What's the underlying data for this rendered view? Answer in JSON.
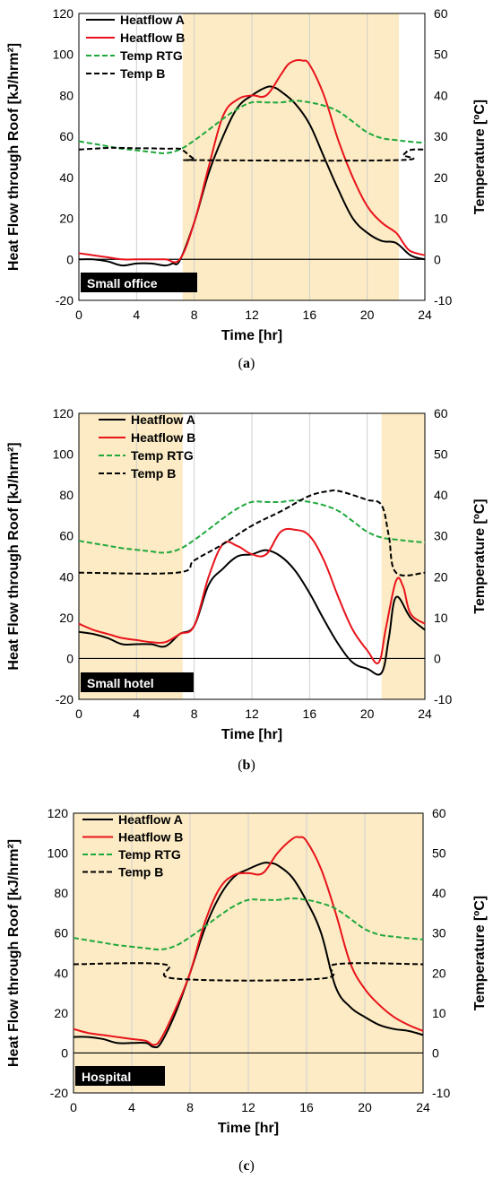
{
  "chart_data": [
    {
      "type": "line",
      "caption": "a",
      "label": "Small office",
      "xlabel": "Time [hr]",
      "ylabel": "Heat Flow through Roof [kJ/hrm²]",
      "y2label": "Temperature [ºC]",
      "xlim": [
        0,
        24
      ],
      "ylim": [
        -20,
        120
      ],
      "y2lim": [
        -10,
        60
      ],
      "xticks": [
        "0",
        "4",
        "8",
        "12",
        "16",
        "20",
        "24"
      ],
      "yticks": [
        "-20",
        "0",
        "20",
        "40",
        "60",
        "80",
        "100",
        "120"
      ],
      "y2ticks": [
        "-10",
        "0",
        "10",
        "20",
        "30",
        "40",
        "50",
        "60"
      ],
      "shaded_hours": [
        [
          7.2,
          22.2
        ]
      ],
      "series": [
        {
          "name": "Heatflow A",
          "axis": "left",
          "color": "#000000",
          "dash": "solid",
          "x": [
            0,
            1,
            2,
            3,
            4,
            5,
            6,
            6.5,
            7,
            8,
            9,
            10,
            11,
            12,
            13,
            13.5,
            14,
            15,
            16,
            17,
            18,
            19,
            20,
            21,
            22,
            23,
            24
          ],
          "y": [
            0,
            0,
            -1,
            -3,
            -2,
            -2,
            -3,
            -2,
            -0.5,
            18,
            42,
            60,
            74,
            80,
            84,
            84,
            82,
            76,
            66,
            50,
            34,
            20,
            13,
            9,
            8,
            2,
            0
          ]
        },
        {
          "name": "Heatflow B",
          "axis": "left",
          "color": "#e8131b",
          "dash": "solid",
          "x": [
            0,
            1,
            2,
            3,
            4,
            5,
            6,
            7,
            8,
            9,
            10,
            11,
            12,
            13,
            14,
            14.5,
            15,
            15.5,
            16,
            17,
            18,
            19,
            20,
            21,
            22,
            22.5,
            23,
            24
          ],
          "y": [
            3,
            2,
            1,
            0,
            0,
            0,
            0,
            0,
            18,
            45,
            70,
            78,
            80,
            80,
            90,
            95,
            97,
            97,
            95,
            80,
            58,
            40,
            26,
            18,
            13,
            8,
            4,
            2
          ]
        },
        {
          "name": "Temp RTG",
          "axis": "right",
          "color": "#1fa83c",
          "dash": "dashed",
          "x": [
            0,
            1,
            2,
            3,
            4,
            5,
            6,
            7,
            8,
            9,
            10,
            11,
            12,
            13,
            14,
            15,
            16,
            17,
            18,
            19,
            20,
            21,
            22,
            23,
            24
          ],
          "y": [
            28.8,
            28.2,
            27.6,
            27,
            26.6,
            26.2,
            25.9,
            26.8,
            29,
            31.6,
            34.3,
            36.7,
            38.3,
            38.3,
            38.3,
            38.7,
            38.3,
            37.5,
            36.1,
            33.6,
            31,
            29.6,
            29.1,
            28.7,
            28.4
          ]
        },
        {
          "name": "Temp B",
          "axis": "right",
          "color": "#000000",
          "dash": "dashed",
          "x": [
            0,
            1,
            2,
            3,
            4,
            5,
            6,
            7,
            7.3,
            8,
            8.5,
            22,
            22.5,
            23,
            24
          ],
          "y": [
            26.8,
            27,
            27.2,
            27.2,
            27.1,
            27.1,
            27,
            27,
            26.4,
            24.5,
            24.2,
            24.2,
            25.5,
            26.7,
            26.8
          ]
        }
      ]
    },
    {
      "type": "line",
      "caption": "b",
      "label": "Small hotel",
      "xlabel": "Time [hr]",
      "ylabel": "Heat Flow through Roof [kJ/hrm²]",
      "y2label": "Temperature [ºC]",
      "xlim": [
        0,
        24
      ],
      "ylim": [
        -20,
        120
      ],
      "y2lim": [
        -10,
        60
      ],
      "xticks": [
        "0",
        "4",
        "8",
        "12",
        "16",
        "20",
        "24"
      ],
      "yticks": [
        "-20",
        "0",
        "20",
        "40",
        "60",
        "80",
        "100",
        "120"
      ],
      "y2ticks": [
        "-10",
        "0",
        "10",
        "20",
        "30",
        "40",
        "50",
        "60"
      ],
      "shaded_hours": [
        [
          0,
          7.2
        ],
        [
          21,
          24
        ]
      ],
      "series": [
        {
          "name": "Heatflow A",
          "axis": "left",
          "color": "#000000",
          "dash": "solid",
          "x": [
            0,
            1,
            2,
            3,
            4,
            5,
            6,
            7,
            8,
            9,
            10,
            11,
            12,
            13,
            14,
            15,
            16,
            17,
            18,
            19,
            20,
            21,
            21.5,
            22,
            23,
            24
          ],
          "y": [
            13,
            12,
            10,
            7,
            7,
            7,
            6,
            12,
            16,
            36,
            44,
            50,
            51,
            53,
            50,
            43,
            32,
            19,
            7,
            -2,
            -5,
            -7,
            10,
            30,
            20,
            14
          ]
        },
        {
          "name": "Heatflow B",
          "axis": "left",
          "color": "#e8131b",
          "dash": "solid",
          "x": [
            0,
            1,
            2,
            3,
            4,
            5,
            6,
            7,
            8,
            9,
            10,
            11,
            12,
            13,
            14,
            15,
            16,
            17,
            18,
            19,
            20,
            20.8,
            21.3,
            22,
            22.5,
            23,
            24
          ],
          "y": [
            17,
            14,
            12,
            10,
            9,
            8,
            8,
            12,
            16,
            40,
            56,
            55,
            51,
            51,
            62,
            63,
            60,
            48,
            30,
            14,
            4,
            -2,
            15,
            38,
            35,
            22,
            17
          ]
        },
        {
          "name": "Temp RTG",
          "axis": "right",
          "color": "#1fa83c",
          "dash": "dashed",
          "x": [
            0,
            1,
            2,
            3,
            4,
            5,
            6,
            7,
            8,
            9,
            10,
            11,
            12,
            13,
            14,
            15,
            16,
            17,
            18,
            19,
            20,
            21,
            22,
            23,
            24
          ],
          "y": [
            28.8,
            28.2,
            27.6,
            27,
            26.6,
            26.2,
            25.9,
            26.8,
            29,
            31.6,
            34.3,
            36.7,
            38.3,
            38.3,
            38.3,
            38.7,
            38.3,
            37.5,
            36.1,
            33.6,
            31,
            29.6,
            29.1,
            28.7,
            28.4
          ]
        },
        {
          "name": "Temp B",
          "axis": "right",
          "color": "#000000",
          "dash": "dashed",
          "x": [
            0,
            6.8,
            8,
            10,
            12,
            14,
            16,
            17.4,
            18,
            19,
            20,
            21,
            21.5,
            22,
            24
          ],
          "y": [
            21,
            21,
            24,
            28,
            32.5,
            36,
            39.8,
            41,
            41,
            40,
            38.8,
            37.5,
            30,
            21,
            21
          ]
        }
      ]
    },
    {
      "type": "line",
      "caption": "c",
      "label": "Hospital",
      "xlabel": "Time [hr]",
      "ylabel": "Heat Flow through Roof [kJ/hrm²]",
      "y2label": "Temperature [ºC]",
      "xlim": [
        0,
        24
      ],
      "ylim": [
        -20,
        120
      ],
      "y2lim": [
        -10,
        60
      ],
      "xticks": [
        "0",
        "4",
        "8",
        "12",
        "16",
        "20",
        "24"
      ],
      "yticks": [
        "-20",
        "0",
        "20",
        "40",
        "60",
        "80",
        "100",
        "120"
      ],
      "y2ticks": [
        "-10",
        "0",
        "10",
        "20",
        "30",
        "40",
        "50",
        "60"
      ],
      "shaded_hours": [
        [
          0,
          24
        ]
      ],
      "series": [
        {
          "name": "Heatflow A",
          "axis": "left",
          "color": "#000000",
          "dash": "solid",
          "x": [
            0,
            1,
            2,
            3,
            4,
            5,
            5.5,
            6,
            7,
            8,
            9,
            10,
            11,
            12,
            13,
            13.5,
            14,
            15,
            16,
            17,
            18,
            19,
            20,
            21,
            22,
            23,
            24
          ],
          "y": [
            8,
            8,
            7,
            5,
            5,
            5,
            3,
            5,
            20,
            40,
            62,
            78,
            88,
            92,
            95,
            95,
            94,
            88,
            76,
            60,
            33,
            23,
            18,
            14,
            12,
            11,
            9
          ]
        },
        {
          "name": "Heatflow B",
          "axis": "left",
          "color": "#e8131b",
          "dash": "solid",
          "x": [
            0,
            1,
            2,
            3,
            4,
            5,
            5.5,
            6,
            7,
            8,
            9,
            10,
            11,
            12,
            13,
            14,
            15,
            15.5,
            16,
            17,
            18,
            19,
            20,
            21,
            22,
            23,
            24
          ],
          "y": [
            12,
            10,
            9,
            8,
            7,
            6,
            4,
            7,
            22,
            40,
            65,
            82,
            89,
            90,
            90,
            100,
            107,
            108,
            106,
            92,
            70,
            45,
            32,
            24,
            18,
            14,
            11
          ]
        },
        {
          "name": "Temp RTG",
          "axis": "right",
          "color": "#1fa83c",
          "dash": "dashed",
          "x": [
            0,
            1,
            2,
            3,
            4,
            5,
            6,
            7,
            8,
            9,
            10,
            11,
            12,
            13,
            14,
            15,
            16,
            17,
            18,
            19,
            20,
            21,
            22,
            23,
            24
          ],
          "y": [
            28.8,
            28.2,
            27.6,
            27,
            26.6,
            26.2,
            25.9,
            26.8,
            29,
            31.6,
            34.3,
            36.7,
            38.3,
            38.3,
            38.3,
            38.7,
            38.3,
            37.5,
            36.1,
            33.6,
            31,
            29.6,
            29.1,
            28.7,
            28.4
          ]
        },
        {
          "name": "Temp B",
          "axis": "right",
          "color": "#000000",
          "dash": "dashed",
          "x": [
            0,
            6.2,
            7,
            17,
            18,
            24
          ],
          "y": [
            22.2,
            22.2,
            18.6,
            18.6,
            22.2,
            22.2
          ]
        }
      ]
    }
  ],
  "colors": {
    "shade": "#fcebc4",
    "grid": "#cfcfcf",
    "label_bg": "#000000"
  }
}
